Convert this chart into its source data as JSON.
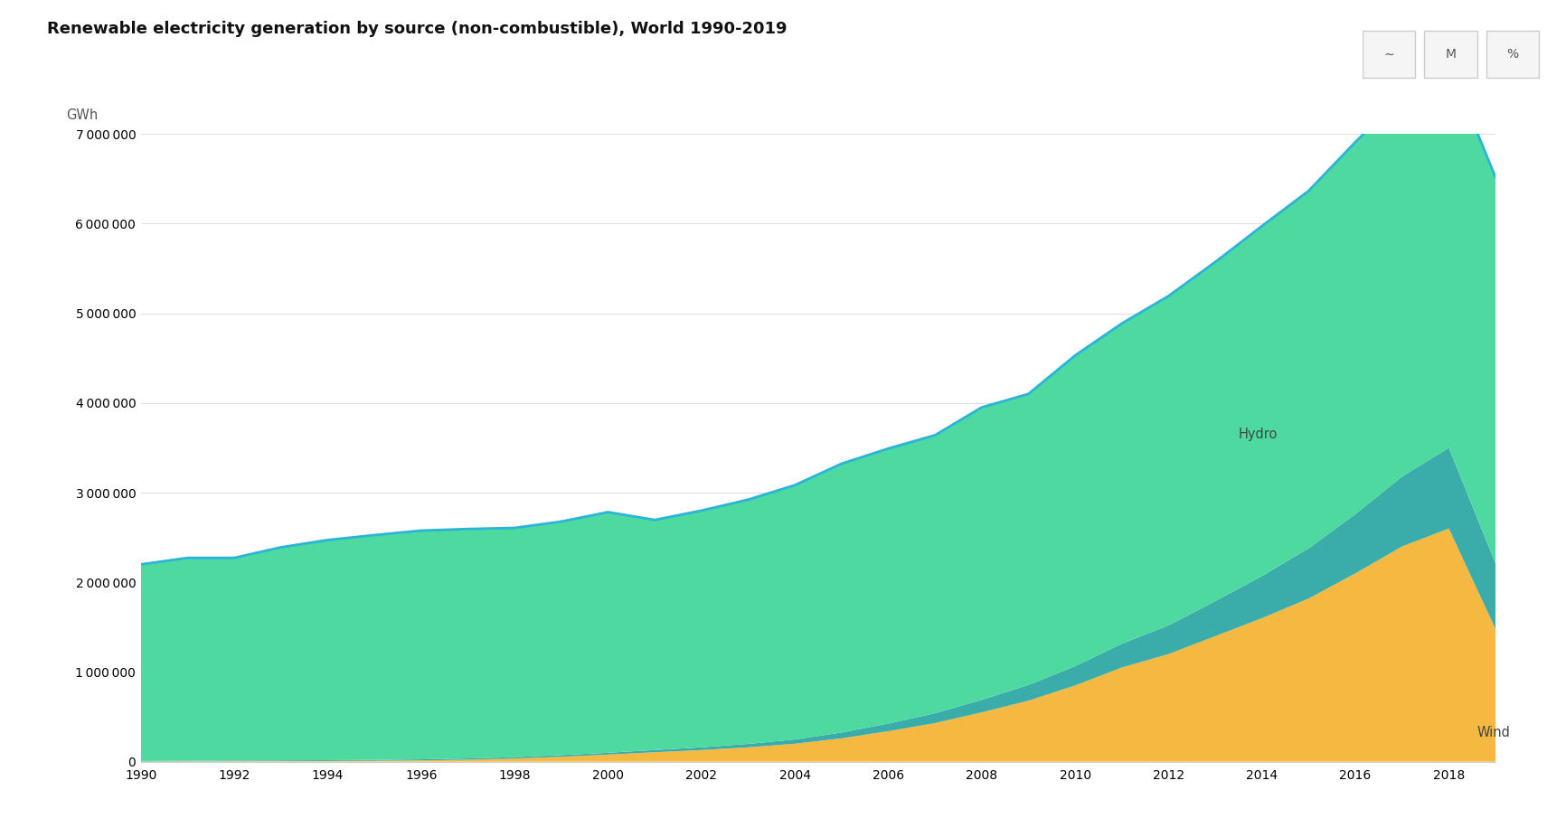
{
  "title": "Renewable electricity generation by source (non-combustible), World 1990-2019",
  "ylabel": "GWh",
  "years": [
    1990,
    1991,
    1992,
    1993,
    1994,
    1995,
    1996,
    1997,
    1998,
    1999,
    2000,
    2001,
    2002,
    2003,
    2004,
    2005,
    2006,
    2007,
    2008,
    2009,
    2010,
    2011,
    2012,
    2013,
    2014,
    2015,
    2016,
    2017,
    2018,
    2019
  ],
  "hydro": [
    2192000,
    2263000,
    2261000,
    2377000,
    2455000,
    2507000,
    2551000,
    2559000,
    2556000,
    2605000,
    2684000,
    2566000,
    2640000,
    2724000,
    2836000,
    2998000,
    3067000,
    3101000,
    3261000,
    3246000,
    3465000,
    3572000,
    3673000,
    3782000,
    3903000,
    3986000,
    4150000,
    4244000,
    4290000,
    4306000
  ],
  "wind": [
    3000,
    4000,
    5000,
    6000,
    8000,
    10000,
    14000,
    22000,
    35000,
    55000,
    79000,
    105000,
    130000,
    160000,
    200000,
    260000,
    340000,
    430000,
    550000,
    680000,
    850000,
    1050000,
    1200000,
    1400000,
    1600000,
    1820000,
    2100000,
    2400000,
    2600000,
    1480000
  ],
  "other": [
    5000,
    6000,
    7000,
    8000,
    9000,
    10000,
    12000,
    14000,
    16000,
    18000,
    20000,
    25000,
    30000,
    38000,
    48000,
    65000,
    85000,
    110000,
    140000,
    175000,
    215000,
    265000,
    320000,
    390000,
    470000,
    560000,
    660000,
    780000,
    900000,
    730000
  ],
  "hydro_color": "#4dd9a0",
  "wind_color": "#f5b942",
  "other_color": "#3aacaa",
  "line_color": "#29b5d8",
  "background_color": "#ffffff",
  "grid_color": "#e0e0e0",
  "ylim": [
    0,
    7000000
  ],
  "yticks": [
    0,
    1000000,
    2000000,
    3000000,
    4000000,
    5000000,
    6000000,
    7000000
  ],
  "hydro_label": "Hydro",
  "wind_label": "Wind",
  "title_fontsize": 13,
  "label_fontsize": 10.5,
  "tick_fontsize": 10
}
